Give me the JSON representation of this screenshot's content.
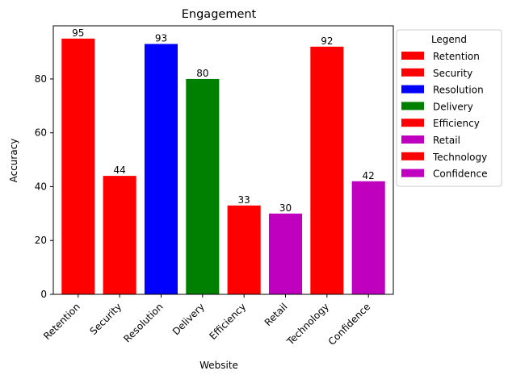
{
  "chart_data": {
    "type": "bar",
    "title": "Engagement",
    "xlabel": "Website",
    "ylabel": "Accuracy",
    "categories": [
      "Retention",
      "Security",
      "Resolution",
      "Delivery",
      "Efficiency",
      "Retail",
      "Technology",
      "Confidence"
    ],
    "values": [
      95,
      44,
      93,
      80,
      33,
      30,
      92,
      42
    ],
    "colors": [
      "#ff0000",
      "#ff0000",
      "#0000ff",
      "#008000",
      "#ff0000",
      "#bf00bf",
      "#ff0000",
      "#bf00bf"
    ],
    "ylim": [
      0,
      99.75
    ],
    "yticks": [
      0,
      20,
      40,
      60,
      80
    ],
    "grid": false,
    "legend": {
      "title": "Legend",
      "placement": "outside right, top",
      "entries": [
        "Retention",
        "Security",
        "Resolution",
        "Delivery",
        "Efficiency",
        "Retail",
        "Technology",
        "Confidence"
      ]
    }
  }
}
